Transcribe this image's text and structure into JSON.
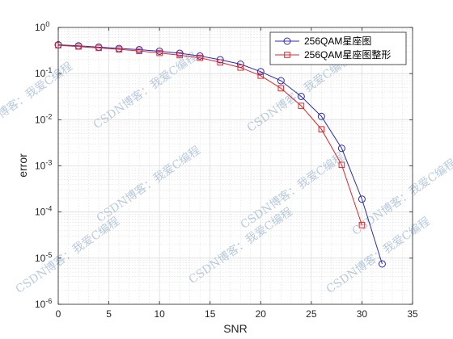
{
  "chart_data": {
    "type": "line",
    "title": "",
    "xlabel": "SNR",
    "ylabel": "error",
    "xlim": [
      0,
      35
    ],
    "ylim": [
      1e-06,
      1
    ],
    "yscale": "log",
    "xticks": [
      "0",
      "5",
      "10",
      "15",
      "20",
      "25",
      "30",
      "35"
    ],
    "grid": true,
    "minor_grid": true,
    "legend_location": "top-right",
    "series": [
      {
        "name": "256QAM星座图",
        "color": "#2b2bb3",
        "marker": "circle",
        "x": [
          0,
          2,
          4,
          6,
          8,
          10,
          12,
          14,
          16,
          18,
          20,
          22,
          24,
          26,
          28,
          30,
          32
        ],
        "y": [
          0.42,
          0.4,
          0.375,
          0.35,
          0.33,
          0.305,
          0.275,
          0.24,
          0.2,
          0.16,
          0.11,
          0.07,
          0.032,
          0.0118,
          0.0024,
          0.00019,
          7.5e-06
        ]
      },
      {
        "name": "256QAM星座图整形",
        "color": "#e0262b",
        "marker": "square",
        "x": [
          0,
          2,
          4,
          6,
          8,
          10,
          12,
          14,
          16,
          18,
          20,
          22,
          24,
          26,
          28,
          30
        ],
        "y": [
          0.41,
          0.385,
          0.36,
          0.335,
          0.31,
          0.28,
          0.25,
          0.22,
          0.175,
          0.135,
          0.09,
          0.048,
          0.02,
          0.0062,
          0.00105,
          5.2e-05
        ]
      }
    ]
  },
  "watermark": "CSDN博客：我爱C编程"
}
